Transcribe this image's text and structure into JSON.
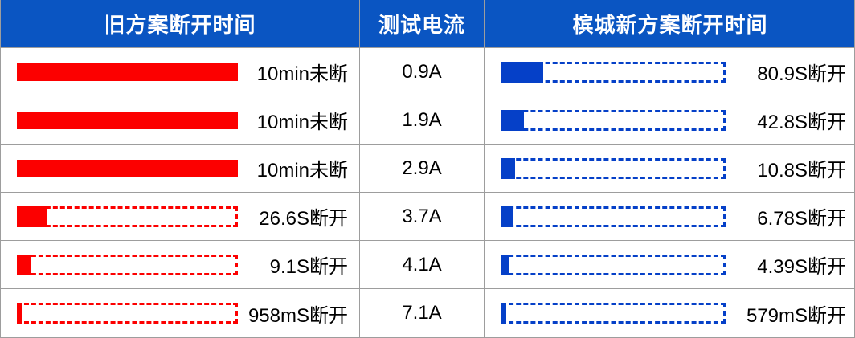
{
  "header": {
    "old_col": "旧方案断开时间",
    "current_col": "测试电流",
    "new_col": "槟城新方案断开时间"
  },
  "colors": {
    "header_bg": "#0a55c2",
    "header_text": "#ffffff",
    "old_bar": "#fc0000",
    "new_bar": "#0540c8",
    "grid_border": "#9d9d9d",
    "cell_text": "#000000"
  },
  "rows": [
    {
      "old": {
        "label": "10min未断",
        "pct": 100,
        "full": true
      },
      "current": "0.9A",
      "new": {
        "label": "80.9S断开",
        "pct": 18.6
      }
    },
    {
      "old": {
        "label": "10min未断",
        "pct": 100,
        "full": true
      },
      "current": "1.9A",
      "new": {
        "label": "42.8S断开",
        "pct": 10.0
      }
    },
    {
      "old": {
        "label": "10min未断",
        "pct": 100,
        "full": true
      },
      "current": "2.9A",
      "new": {
        "label": "10.8S断开",
        "pct": 6.1
      }
    },
    {
      "old": {
        "label": "26.6S断开",
        "pct": 13.5,
        "full": false
      },
      "current": "3.7A",
      "new": {
        "label": "6.78S断开",
        "pct": 5.0
      }
    },
    {
      "old": {
        "label": "9.1S断开",
        "pct": 6.5,
        "full": false
      },
      "current": "4.1A",
      "new": {
        "label": "4.39S断开",
        "pct": 3.6
      }
    },
    {
      "old": {
        "label": "958mS断开",
        "pct": 2.2,
        "full": false
      },
      "current": "7.1A",
      "new": {
        "label": "579mS断开",
        "pct": 2.2
      }
    }
  ],
  "chart_data": {
    "type": "bar",
    "orientation": "horizontal",
    "title": "",
    "categories": [
      "0.9A",
      "1.9A",
      "2.9A",
      "3.7A",
      "4.1A",
      "7.1A"
    ],
    "category_label": "测试电流",
    "series": [
      {
        "name": "旧方案断开时间",
        "color": "#fc0000",
        "labels": [
          "10min未断",
          "10min未断",
          "10min未断",
          "26.6S断开",
          "9.1S断开",
          "958mS断开"
        ],
        "values_seconds": [
          600,
          600,
          600,
          26.6,
          9.1,
          0.958
        ],
        "not_disconnected": [
          true,
          true,
          true,
          false,
          false,
          false
        ]
      },
      {
        "name": "槟城新方案断开时间",
        "color": "#0540c8",
        "labels": [
          "80.9S断开",
          "42.8S断开",
          "10.8S断开",
          "6.78S断开",
          "4.39S断开",
          "579mS断开"
        ],
        "values_seconds": [
          80.9,
          42.8,
          10.8,
          6.78,
          4.39,
          0.579
        ],
        "not_disconnected": [
          false,
          false,
          false,
          false,
          false,
          false
        ]
      }
    ],
    "legend_position": "table-header",
    "grid": false,
    "notes": "每行为一个测试电流；实心条为实际断开时间，虚线框为满量程（10min）参照；前三行旧方案10分钟未断开，显示为全实心条"
  }
}
